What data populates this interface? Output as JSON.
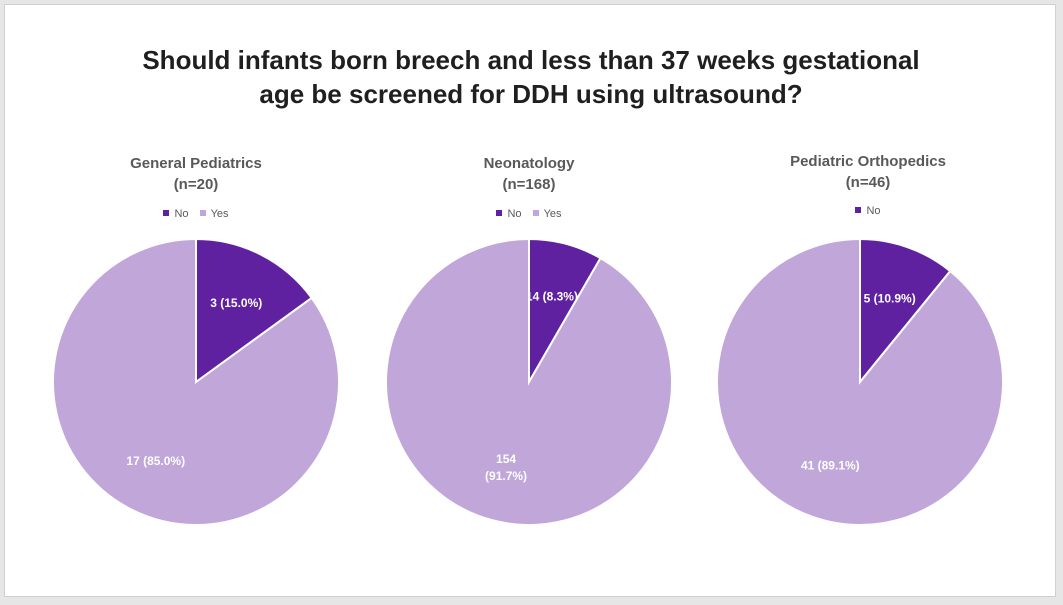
{
  "title_line1": "Should infants born breech and less than 37 weeks gestational",
  "title_line2": "age be screened for DDH using ultrasound?",
  "colors": {
    "no": "#5f21a0",
    "yes": "#c0a6d9"
  },
  "chart_data": [
    {
      "type": "pie",
      "title": "General Pediatrics",
      "subtitle": "(n=20)",
      "legend": [
        "No",
        "Yes"
      ],
      "slices": [
        {
          "category": "No",
          "value": 3,
          "label": "3 (15.0%)"
        },
        {
          "category": "Yes",
          "value": 17,
          "label": "17 (85.0%)"
        }
      ]
    },
    {
      "type": "pie",
      "title": "Neonatology",
      "subtitle": "(n=168)",
      "legend": [
        "No",
        "Yes"
      ],
      "slices": [
        {
          "category": "No",
          "value": 14,
          "label": "14 (8.3%)"
        },
        {
          "category": "Yes",
          "value": 154,
          "label": "154\n(91.7%)"
        }
      ]
    },
    {
      "type": "pie",
      "title": "Pediatric Orthopedics",
      "subtitle": "(n=46)",
      "legend": [
        "No"
      ],
      "slices": [
        {
          "category": "No",
          "value": 5,
          "label": "5 (10.9%)"
        },
        {
          "category": "Yes",
          "value": 41,
          "label": "41 (89.1%)"
        }
      ]
    }
  ]
}
